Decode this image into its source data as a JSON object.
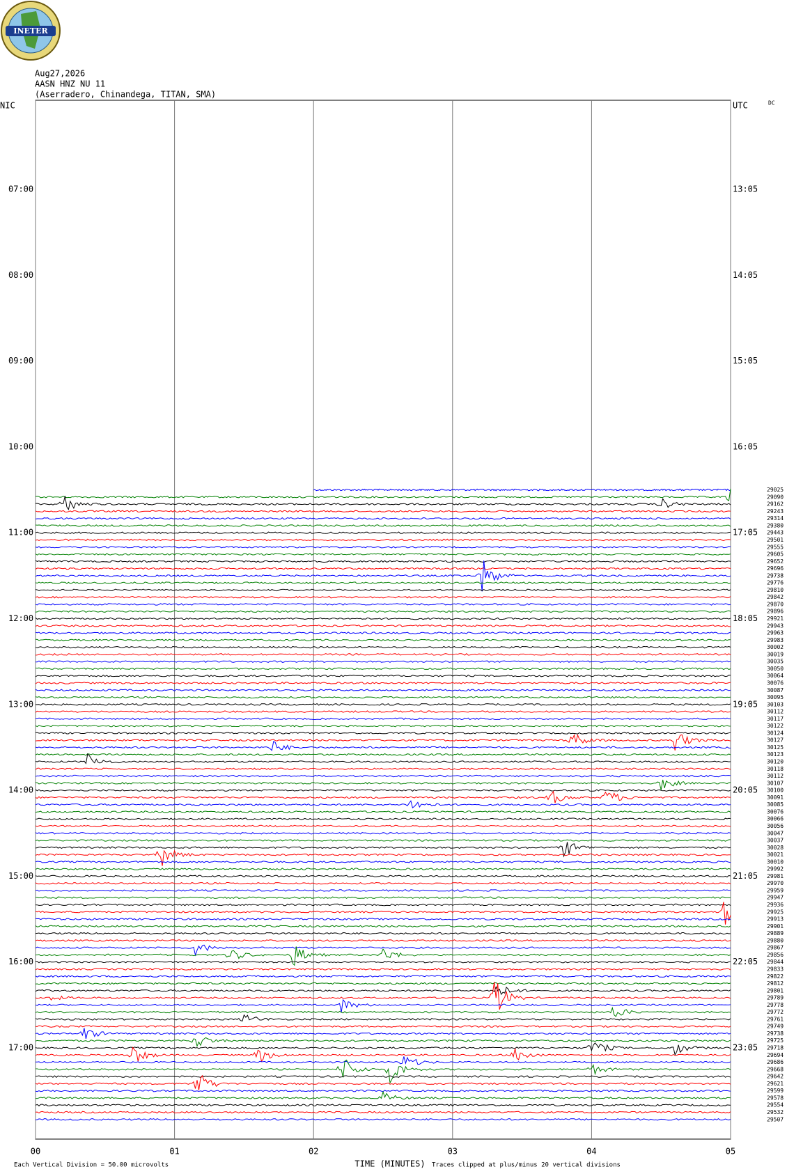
{
  "header": {
    "logo": "INETER",
    "date": "Aug27,2026",
    "station": "AASN HNZ NU 11",
    "location": "(Aserradero, Chinandega, TITAN, SMA)"
  },
  "chart_data": {
    "type": "helicorder",
    "left_label": "NIC",
    "right_label": "UTC",
    "corner_label": "DC",
    "left_times": [
      "07:00",
      "08:00",
      "09:00",
      "10:00",
      "11:00",
      "12:00",
      "13:00",
      "14:00",
      "15:00",
      "16:00",
      "17:00"
    ],
    "right_times": [
      "13:05",
      "14:05",
      "15:05",
      "16:05",
      "17:05",
      "18:05",
      "19:05",
      "20:05",
      "21:05",
      "22:05",
      "23:05"
    ],
    "xlim": [
      0,
      5
    ],
    "xticks": [
      {
        "value": 0,
        "label": "00"
      },
      {
        "value": 1,
        "label": "01"
      },
      {
        "value": 2,
        "label": "02"
      },
      {
        "value": 3,
        "label": "03"
      },
      {
        "value": 4,
        "label": "04"
      },
      {
        "value": 5,
        "label": "05"
      }
    ],
    "x_label": "TIME (MINUTES)",
    "scale_note": "Each Vertical Division =   50.00 microvolts",
    "clip_note": "Traces clipped at plus/minus 20 vertical divisions",
    "trace_colors": [
      "#0000ff",
      "#008000",
      "#000000",
      "#ff0000"
    ],
    "trace_labels": [
      29025,
      29090,
      29162,
      29243,
      29314,
      29380,
      29443,
      29501,
      29555,
      29605,
      29652,
      29696,
      29738,
      29776,
      29810,
      29842,
      29870,
      29896,
      29921,
      29943,
      29963,
      29983,
      30002,
      30019,
      30035,
      30050,
      30064,
      30076,
      30087,
      30095,
      30103,
      30112,
      30117,
      30122,
      30124,
      30127,
      30125,
      30123,
      30120,
      30118,
      30112,
      30107,
      30100,
      30091,
      30085,
      30076,
      30066,
      30056,
      30047,
      30037,
      30028,
      30021,
      30010,
      29992,
      29981,
      29970,
      29959,
      29947,
      29936,
      29925,
      29913,
      29901,
      29889,
      29880,
      29867,
      29856,
      29844,
      29833,
      29822,
      29812,
      29801,
      29789,
      29778,
      29772,
      29761,
      29749,
      29738,
      29725,
      29718,
      29694,
      29686,
      29668,
      29642,
      29621,
      29599,
      29578,
      29554,
      29532,
      29507
    ]
  }
}
